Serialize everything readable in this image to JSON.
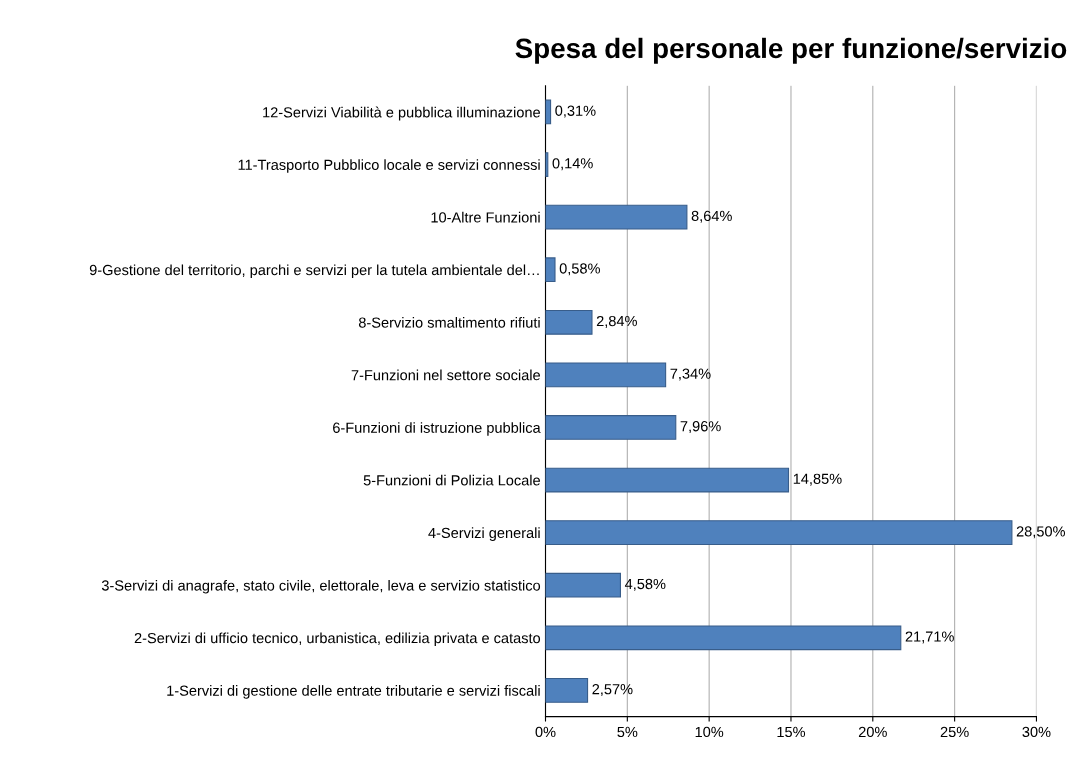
{
  "chart_data": {
    "type": "bar",
    "orientation": "horizontal",
    "title": "Spesa del personale per funzione/servizio",
    "categories": [
      "12-Servizi Viabilità e pubblica illuminazione",
      "11-Trasporto Pubblico locale e servizi connessi",
      "10-Altre Funzioni",
      "9-Gestione del territorio, parchi e servizi per la tutela ambientale del…",
      "8-Servizio smaltimento rifiuti",
      "7-Funzioni nel settore sociale",
      "6-Funzioni di istruzione pubblica",
      "5-Funzioni di Polizia Locale",
      "4-Servizi generali",
      "3-Servizi di anagrafe, stato civile, elettorale, leva e servizio statistico",
      "2-Servizi di ufficio tecnico, urbanistica, edilizia privata e catasto",
      "1-Servizi di gestione delle entrate tributarie e servizi fiscali"
    ],
    "values": [
      0.31,
      0.14,
      8.64,
      0.58,
      2.84,
      7.34,
      7.96,
      14.85,
      28.5,
      4.58,
      21.71,
      2.57
    ],
    "value_labels": [
      "0,31%",
      "0,14%",
      "8,64%",
      "0,58%",
      "2,84%",
      "7,34%",
      "7,96%",
      "14,85%",
      "28,50%",
      "4,58%",
      "21,71%",
      "2,57%"
    ],
    "color": "#4f81bd",
    "xlim": [
      0,
      30
    ],
    "xticks": [
      {
        "value": 0,
        "label": "0%"
      },
      {
        "value": 5,
        "label": "5%"
      },
      {
        "value": 10,
        "label": "10%"
      },
      {
        "value": 15,
        "label": "15%"
      },
      {
        "value": 20,
        "label": "20%"
      },
      {
        "value": 25,
        "label": "25%"
      },
      {
        "value": 30,
        "label": "30%"
      }
    ],
    "grid": "x"
  }
}
